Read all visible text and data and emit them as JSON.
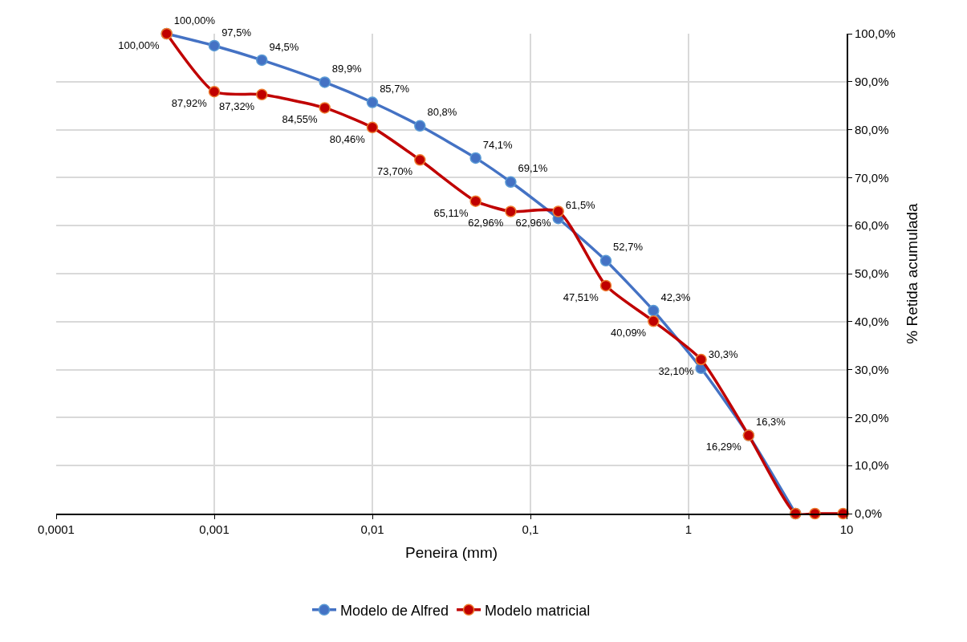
{
  "chart_data": {
    "type": "line",
    "xlabel": "Peneira (mm)",
    "ylabel": "% Retida acumulada",
    "x": [
      0.0005,
      0.001,
      0.002,
      0.005,
      0.01,
      0.02,
      0.045,
      0.075,
      0.15,
      0.3,
      0.6,
      1.2,
      2.4,
      4.75,
      6.3,
      9.5
    ],
    "series": [
      {
        "name": "Modelo de Alfred",
        "color": "#4472c4",
        "values": [
          100,
          97.5,
          94.5,
          89.9,
          85.7,
          80.8,
          74.1,
          69.1,
          61.5,
          52.7,
          42.3,
          30.3,
          16.3,
          0,
          null,
          null
        ],
        "value_labels": [
          "100,00%",
          "97,5%",
          "94,5%",
          "89,9%",
          "85,7%",
          "80,8%",
          "74,1%",
          "69,1%",
          "61,5%",
          "52,7%",
          "42,3%",
          "30,3%",
          "16,3%",
          null,
          null,
          null
        ]
      },
      {
        "name": "Modelo matricial",
        "color": "#c00000",
        "values": [
          100,
          87.92,
          87.32,
          84.55,
          80.46,
          73.7,
          65.11,
          62.96,
          62.96,
          47.51,
          40.09,
          32.1,
          16.29,
          0,
          0,
          0
        ],
        "value_labels": [
          "100,00%",
          "87,92%",
          "87,32%",
          "84,55%",
          "80,46%",
          "73,70%",
          "65,11%",
          "62,96%",
          "62,96%",
          "47,51%",
          "40,09%",
          "32,10%",
          "16,29%",
          null,
          null,
          null
        ]
      }
    ],
    "log": "x",
    "xlim": [
      0.0001,
      10
    ],
    "xticks": [
      {
        "value": 0.0001,
        "label": "0,0001"
      },
      {
        "value": 0.001,
        "label": "0,001"
      },
      {
        "value": 0.01,
        "label": "0,01"
      },
      {
        "value": 0.1,
        "label": "0,1"
      },
      {
        "value": 1,
        "label": "1"
      },
      {
        "value": 10,
        "label": "10"
      }
    ],
    "ylim": [
      0,
      100
    ],
    "yticks": [
      {
        "value": 0,
        "label": "0,0%"
      },
      {
        "value": 10,
        "label": "10,0%"
      },
      {
        "value": 20,
        "label": "20,0%"
      },
      {
        "value": 30,
        "label": "30,0%"
      },
      {
        "value": 40,
        "label": "40,0%"
      },
      {
        "value": 50,
        "label": "50,0%"
      },
      {
        "value": 60,
        "label": "60,0%"
      },
      {
        "value": 70,
        "label": "70,0%"
      },
      {
        "value": 80,
        "label": "80,0%"
      },
      {
        "value": 90,
        "label": "90,0%"
      },
      {
        "value": 100,
        "label": "100,0%"
      }
    ],
    "grid": true,
    "legend": "bottom",
    "marker": "circle",
    "line_style": "solid"
  }
}
